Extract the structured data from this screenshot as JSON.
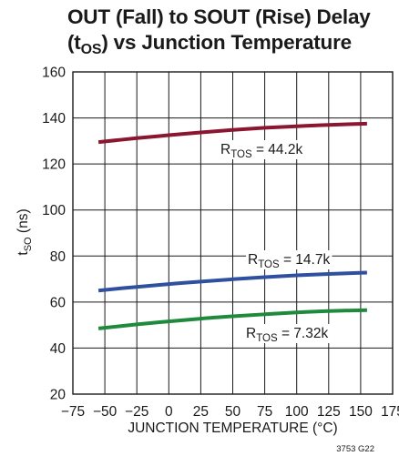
{
  "chart_data": {
    "type": "line",
    "title": {
      "line1": "OUT (Fall) to SOUT (Rise) Delay",
      "line2_open": "(t",
      "line2_sub": "OS",
      "line2_rest": ") vs Junction Temperature"
    },
    "xlabel": "JUNCTION TEMPERATURE (°C)",
    "ylabel": {
      "main": "t",
      "sub": "SO",
      "rest": " (ns)"
    },
    "xlim": [
      -75,
      175
    ],
    "ylim": [
      20,
      160
    ],
    "xticks": [
      -75,
      -50,
      -25,
      0,
      25,
      50,
      75,
      100,
      125,
      150,
      175
    ],
    "xtick_labels": [
      "−75",
      "−50",
      "−25",
      "0",
      "25",
      "50",
      "75",
      "100",
      "125",
      "150",
      "175"
    ],
    "yticks": [
      20,
      40,
      60,
      80,
      100,
      120,
      140,
      160
    ],
    "ytick_labels": [
      "20",
      "40",
      "60",
      "80",
      "100",
      "120",
      "140",
      "160"
    ],
    "grid": true,
    "series": [
      {
        "label_main": "R",
        "label_sub": "TOS",
        "label_value": " = 44.2k",
        "color": "#8b1630",
        "x": [
          -55,
          -25,
          0,
          25,
          50,
          75,
          100,
          125,
          155
        ],
        "y": [
          129.5,
          131.2,
          132.5,
          133.7,
          134.8,
          135.7,
          136.4,
          137.0,
          137.5
        ]
      },
      {
        "label_main": "R",
        "label_sub": "TOS",
        "label_value": " = 14.7k",
        "color": "#2f4fa0",
        "x": [
          -55,
          -25,
          0,
          25,
          50,
          75,
          100,
          125,
          155
        ],
        "y": [
          65.0,
          66.6,
          67.8,
          68.9,
          69.9,
          70.8,
          71.6,
          72.2,
          72.8
        ]
      },
      {
        "label_main": "R",
        "label_sub": "TOS",
        "label_value": " = 7.32k",
        "color": "#1f8a3c",
        "x": [
          -55,
          -25,
          0,
          25,
          50,
          75,
          100,
          125,
          155
        ],
        "y": [
          48.5,
          50.3,
          51.6,
          52.8,
          53.8,
          54.7,
          55.5,
          56.1,
          56.5
        ]
      }
    ],
    "figure_number": "3753 G22"
  }
}
